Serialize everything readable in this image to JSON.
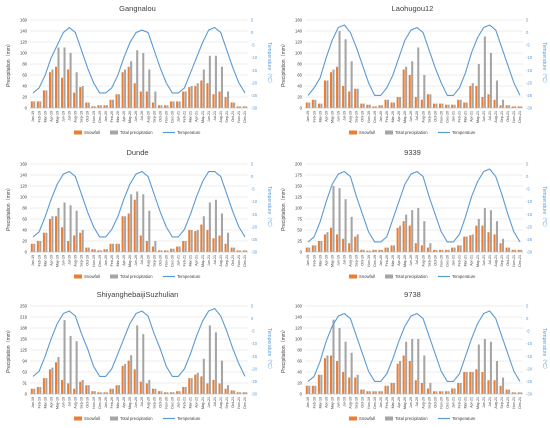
{
  "legend": {
    "snowfall": "Snowfall",
    "total": "Total precipitation",
    "temperature": "Temperature"
  },
  "colors": {
    "snowfall": "#ed7d31",
    "total": "#a5a5a5",
    "temperature": "#5b9bd5",
    "axis": "#d9d9d9",
    "text": "#404040"
  },
  "chart_data": [
    {
      "type": "bar",
      "title": "Gangnalou",
      "ylabel": "Precipitation（mm）",
      "y2label": "Temperature（°C）",
      "ylim": [
        0,
        160
      ],
      "y2lim": [
        -30,
        5
      ],
      "categories": [
        "Jan-19",
        "Feb-19",
        "Mar-19",
        "Apr-19",
        "May-19",
        "Jun-19",
        "Jul-19",
        "Aug-19",
        "Sep-19",
        "Oct-19",
        "Nov-19",
        "Dec-19",
        "Jan-20",
        "Feb-20",
        "Mar-20",
        "Apr-20",
        "May-20",
        "Jun-20",
        "Jul-20",
        "Aug-20",
        "Sep-20",
        "Oct-20",
        "Nov-20",
        "Dec-20",
        "Jan-21",
        "Feb-21",
        "Mar-21",
        "Apr-21",
        "May-21",
        "Jun-21",
        "Jul-21",
        "Aug-21",
        "Sep-21",
        "Oct-21",
        "Nov-21",
        "Dec-21"
      ],
      "series": [
        {
          "name": "Snowfall",
          "values": [
            12,
            12,
            32,
            65,
            75,
            55,
            70,
            28,
            38,
            10,
            3,
            5,
            5,
            15,
            25,
            65,
            75,
            45,
            30,
            30,
            10,
            5,
            5,
            12,
            12,
            30,
            38,
            40,
            50,
            45,
            25,
            30,
            20,
            10,
            3,
            3
          ]
        },
        {
          "name": "Total precipitation",
          "values": [
            12,
            12,
            32,
            70,
            110,
            110,
            100,
            65,
            40,
            10,
            3,
            5,
            5,
            15,
            25,
            70,
            85,
            105,
            100,
            70,
            30,
            5,
            5,
            12,
            12,
            30,
            40,
            45,
            70,
            95,
            95,
            75,
            30,
            10,
            3,
            3
          ]
        },
        {
          "name": "Temperature",
          "values": [
            -24,
            -22,
            -17,
            -10,
            -5,
            0,
            2,
            0,
            -7,
            -14,
            -20,
            -24,
            -24,
            -22,
            -17,
            -10,
            -4,
            0,
            1,
            0,
            -7,
            -14,
            -20,
            -24,
            -24,
            -22,
            -16,
            -10,
            -4,
            1,
            2,
            0,
            -7,
            -14,
            -20,
            -24
          ]
        }
      ]
    },
    {
      "type": "bar",
      "title": "Laohugou12",
      "ylabel": "Precipitation（mm）",
      "y2label": "Temperature（°C）",
      "ylim": [
        0,
        160
      ],
      "y2lim": [
        -30,
        5
      ],
      "categories": [
        "Jan-19",
        "Feb-19",
        "Mar-19",
        "Apr-19",
        "May-19",
        "Jun-19",
        "Jul-19",
        "Aug-19",
        "Sep-19",
        "Oct-19",
        "Nov-19",
        "Dec-19",
        "Jan-20",
        "Feb-20",
        "Mar-20",
        "Apr-20",
        "May-20",
        "Jun-20",
        "Jul-20",
        "Aug-20",
        "Sep-20",
        "Oct-20",
        "Nov-20",
        "Dec-20",
        "Jan-21",
        "Feb-21",
        "Mar-21",
        "Apr-21",
        "May-21",
        "Jun-21",
        "Jul-21",
        "Aug-21",
        "Sep-21",
        "Oct-21",
        "Nov-21",
        "Dec-21"
      ],
      "series": [
        {
          "name": "Snowfall",
          "values": [
            10,
            15,
            8,
            50,
            65,
            75,
            40,
            30,
            35,
            8,
            6,
            3,
            5,
            15,
            10,
            20,
            70,
            60,
            20,
            15,
            25,
            8,
            8,
            6,
            6,
            15,
            10,
            40,
            40,
            20,
            25,
            15,
            5,
            5,
            3,
            3
          ]
        },
        {
          "name": "Total precipitation",
          "values": [
            10,
            15,
            8,
            50,
            70,
            140,
            125,
            85,
            35,
            8,
            6,
            3,
            5,
            15,
            10,
            20,
            75,
            85,
            110,
            60,
            25,
            8,
            8,
            6,
            6,
            15,
            10,
            45,
            80,
            130,
            100,
            50,
            15,
            5,
            3,
            3
          ]
        },
        {
          "name": "Temperature",
          "values": [
            -25,
            -22,
            -18,
            -10,
            -3,
            2,
            3,
            0,
            -6,
            -13,
            -20,
            -25,
            -25,
            -22,
            -17,
            -10,
            -3,
            1,
            2,
            0,
            -7,
            -14,
            -20,
            -25,
            -25,
            -22,
            -16,
            -8,
            -2,
            2,
            3,
            1,
            -6,
            -13,
            -20,
            -25
          ]
        }
      ]
    },
    {
      "type": "bar",
      "title": "Dunde",
      "ylabel": "Precipitation（mm）",
      "y2label": "Temperature（°C）",
      "ylim": [
        0,
        160
      ],
      "y2lim": [
        -30,
        5
      ],
      "categories": [
        "Jan-19",
        "Feb-19",
        "Mar-19",
        "Apr-19",
        "May-19",
        "Jun-19",
        "Jul-19",
        "Aug-19",
        "Sep-19",
        "Oct-19",
        "Nov-19",
        "Dec-19",
        "Jan-20",
        "Feb-20",
        "Mar-20",
        "Apr-20",
        "May-20",
        "Jun-20",
        "Jul-20",
        "Aug-20",
        "Sep-20",
        "Oct-20",
        "Nov-20",
        "Dec-20",
        "Jan-21",
        "Feb-21",
        "Mar-21",
        "Apr-21",
        "May-21",
        "Jun-21",
        "Jul-21",
        "Aug-21",
        "Sep-21",
        "Oct-21",
        "Nov-21",
        "Dec-21"
      ],
      "series": [
        {
          "name": "Snowfall",
          "values": [
            15,
            20,
            35,
            60,
            65,
            45,
            20,
            30,
            35,
            8,
            5,
            3,
            5,
            15,
            15,
            65,
            70,
            95,
            30,
            20,
            10,
            3,
            3,
            6,
            10,
            20,
            40,
            38,
            50,
            40,
            25,
            30,
            15,
            8,
            3,
            3
          ]
        },
        {
          "name": "Total precipitation",
          "values": [
            15,
            20,
            35,
            65,
            80,
            90,
            85,
            75,
            40,
            8,
            5,
            3,
            5,
            15,
            15,
            65,
            105,
            110,
            105,
            75,
            20,
            3,
            3,
            6,
            10,
            20,
            40,
            40,
            65,
            90,
            95,
            70,
            35,
            8,
            3,
            3
          ]
        },
        {
          "name": "Temperature",
          "values": [
            -24,
            -22,
            -16,
            -9,
            -3,
            1,
            2,
            0,
            -7,
            -14,
            -20,
            -24,
            -24,
            -21,
            -16,
            -9,
            -3,
            1,
            2,
            0,
            -7,
            -14,
            -20,
            -24,
            -24,
            -21,
            -15,
            -8,
            -2,
            2,
            2,
            0,
            -7,
            -14,
            -20,
            -24
          ]
        }
      ]
    },
    {
      "type": "bar",
      "title": "9339",
      "ylabel": "Precipitation（mm）",
      "y2label": "Temperature（°C）",
      "ylim": [
        0,
        200
      ],
      "y2lim": [
        -30,
        5
      ],
      "categories": [
        "Jan-19",
        "Feb-19",
        "Mar-19",
        "Apr-19",
        "May-19",
        "Jun-19",
        "Jul-19",
        "Aug-19",
        "Sep-19",
        "Oct-19",
        "Nov-19",
        "Dec-19",
        "Jan-20",
        "Feb-20",
        "Mar-20",
        "Apr-20",
        "May-20",
        "Jun-20",
        "Jul-20",
        "Aug-20",
        "Sep-20",
        "Oct-20",
        "Nov-20",
        "Dec-20",
        "Jan-21",
        "Feb-21",
        "Mar-21",
        "Apr-21",
        "May-21",
        "Jun-21",
        "Jul-21",
        "Aug-21",
        "Sep-21",
        "Oct-21",
        "Nov-21",
        "Dec-21"
      ],
      "series": [
        {
          "name": "Snowfall",
          "values": [
            10,
            15,
            25,
            40,
            55,
            40,
            30,
            20,
            35,
            5,
            3,
            5,
            5,
            10,
            15,
            55,
            70,
            60,
            20,
            15,
            10,
            5,
            5,
            5,
            10,
            15,
            35,
            38,
            60,
            60,
            45,
            40,
            20,
            10,
            5,
            5
          ]
        },
        {
          "name": "Total precipitation",
          "values": [
            10,
            15,
            25,
            45,
            150,
            145,
            120,
            80,
            40,
            5,
            3,
            5,
            5,
            10,
            15,
            60,
            85,
            95,
            100,
            70,
            20,
            5,
            5,
            5,
            10,
            15,
            35,
            40,
            75,
            100,
            95,
            70,
            30,
            10,
            5,
            5
          ]
        },
        {
          "name": "Temperature",
          "values": [
            -26,
            -24,
            -18,
            -10,
            -3,
            1,
            2,
            0,
            -8,
            -15,
            -22,
            -26,
            -26,
            -24,
            -17,
            -10,
            -3,
            1,
            2,
            0,
            -8,
            -15,
            -22,
            -26,
            -26,
            -23,
            -16,
            -8,
            -2,
            2,
            3,
            0,
            -7,
            -15,
            -22,
            -26
          ]
        }
      ]
    },
    {
      "type": "bar",
      "title": "ShiyanghebaijiSuzhulian",
      "ylabel": "Precipitation（mm）",
      "y2label": "Temperature（°C）",
      "ylim": [
        0,
        250
      ],
      "y2lim": [
        -30,
        5
      ],
      "categories": [
        "Jan-19",
        "Feb-19",
        "Mar-19",
        "Apr-19",
        "May-19",
        "Jun-19",
        "Jul-19",
        "Aug-19",
        "Sep-19",
        "Oct-19",
        "Nov-19",
        "Dec-19",
        "Jan-20",
        "Feb-20",
        "Mar-20",
        "Apr-20",
        "May-20",
        "Jun-20",
        "Jul-20",
        "Aug-20",
        "Sep-20",
        "Oct-20",
        "Nov-20",
        "Dec-20",
        "Jan-21",
        "Feb-21",
        "Mar-21",
        "Apr-21",
        "May-21",
        "Jun-21",
        "Jul-21",
        "Aug-21",
        "Sep-21",
        "Oct-21",
        "Nov-21",
        "Dec-21"
      ],
      "series": [
        {
          "name": "Snowfall",
          "values": [
            15,
            20,
            45,
            70,
            90,
            40,
            30,
            15,
            35,
            25,
            8,
            5,
            5,
            15,
            25,
            80,
            95,
            70,
            35,
            30,
            15,
            8,
            5,
            5,
            8,
            20,
            45,
            55,
            50,
            30,
            40,
            30,
            15,
            10,
            5,
            5
          ]
        },
        {
          "name": "Total precipitation",
          "values": [
            15,
            20,
            45,
            75,
            105,
            210,
            165,
            150,
            40,
            25,
            8,
            5,
            5,
            15,
            25,
            85,
            110,
            195,
            170,
            40,
            15,
            8,
            5,
            5,
            8,
            20,
            45,
            60,
            100,
            195,
            175,
            95,
            25,
            10,
            5,
            5
          ]
        },
        {
          "name": "Temperature",
          "values": [
            -23,
            -21,
            -15,
            -8,
            -2,
            2,
            3,
            1,
            -6,
            -12,
            -19,
            -23,
            -23,
            -20,
            -14,
            -8,
            -2,
            2,
            3,
            1,
            -6,
            -12,
            -19,
            -23,
            -23,
            -20,
            -14,
            -7,
            -1,
            3,
            4,
            1,
            -5,
            -12,
            -18,
            -23
          ]
        }
      ]
    },
    {
      "type": "bar",
      "title": "9738",
      "ylabel": "Precipitation（mm）",
      "y2label": "Temperature（°C）",
      "ylim": [
        0,
        160
      ],
      "y2lim": [
        -30,
        5
      ],
      "categories": [
        "Jan-19",
        "Feb-19",
        "Mar-19",
        "Apr-19",
        "May-19",
        "Jun-19",
        "Jul-19",
        "Aug-19",
        "Sep-19",
        "Oct-19",
        "Nov-19",
        "Dec-19",
        "Jan-20",
        "Feb-20",
        "Mar-20",
        "Apr-20",
        "May-20",
        "Jun-20",
        "Jul-20",
        "Aug-20",
        "Sep-20",
        "Oct-20",
        "Nov-20",
        "Dec-20",
        "Jan-21",
        "Feb-21",
        "Mar-21",
        "Apr-21",
        "May-21",
        "Jun-21",
        "Jul-21",
        "Aug-21",
        "Sep-21",
        "Oct-21",
        "Nov-21",
        "Dec-21"
      ],
      "series": [
        {
          "name": "Snowfall",
          "values": [
            15,
            15,
            35,
            65,
            70,
            60,
            40,
            30,
            30,
            8,
            5,
            5,
            5,
            15,
            20,
            55,
            70,
            60,
            25,
            20,
            10,
            5,
            5,
            5,
            10,
            20,
            40,
            40,
            45,
            40,
            25,
            25,
            15,
            8,
            3,
            3
          ]
        },
        {
          "name": "Total precipitation",
          "values": [
            15,
            15,
            35,
            70,
            135,
            120,
            95,
            75,
            35,
            8,
            5,
            5,
            5,
            15,
            20,
            60,
            95,
            100,
            100,
            70,
            20,
            5,
            5,
            5,
            10,
            20,
            40,
            40,
            90,
            100,
            95,
            60,
            30,
            8,
            3,
            3
          ]
        },
        {
          "name": "Temperature",
          "values": [
            -25,
            -23,
            -17,
            -9,
            -3,
            1,
            2,
            0,
            -7,
            -14,
            -21,
            -25,
            -25,
            -22,
            -16,
            -9,
            -3,
            1,
            2,
            0,
            -7,
            -14,
            -21,
            -25,
            -25,
            -22,
            -15,
            -8,
            -2,
            2,
            3,
            0,
            -7,
            -14,
            -21,
            -25
          ]
        }
      ]
    }
  ]
}
